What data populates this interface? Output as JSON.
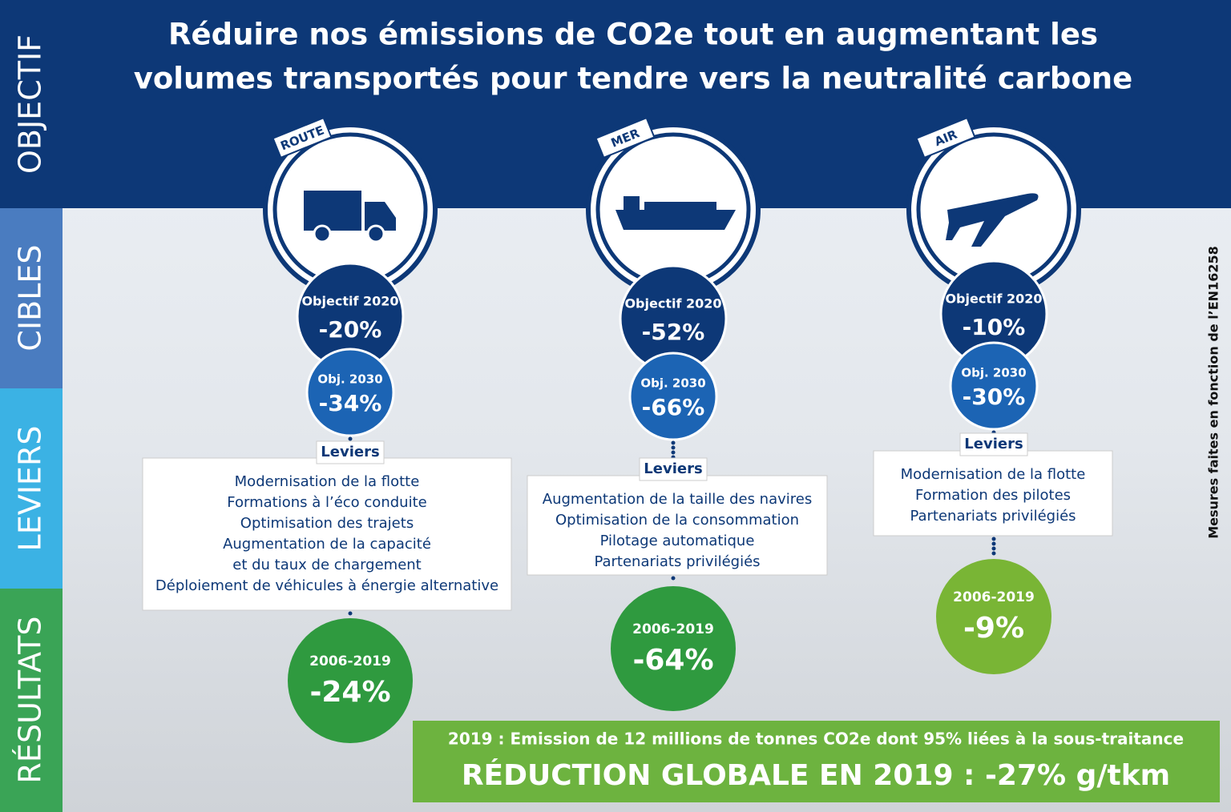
{
  "sidebar": [
    "OBJECTIF",
    "CIBLES",
    "LEVIERS",
    "RÉSULTATS"
  ],
  "title": [
    "Réduire nos émissions de CO2e tout en augmentant les",
    "volumes transportés pour tendre vers la neutralité carbone"
  ],
  "modes": [
    {
      "label": "ROUTE",
      "obj2020_label": "Objectif 2020",
      "obj2020_value": "-20%",
      "obj2030_label": "Obj. 2030",
      "obj2030_value": "-34%",
      "levers_title": "Leviers",
      "levers": [
        "Modernisation de la flotte",
        "Formations à l’éco conduite",
        "Optimisation des trajets",
        "Augmentation de la capacité",
        "et du taux de chargement",
        "Déploiement de véhicules à énergie alternative"
      ],
      "result_period": "2006-2019",
      "result_value": "-24%"
    },
    {
      "label": "MER",
      "obj2020_label": "Objectif 2020",
      "obj2020_value": "-52%",
      "obj2030_label": "Obj. 2030",
      "obj2030_value": "-66%",
      "levers_title": "Leviers",
      "levers": [
        "Augmentation de la taille des navires",
        "Optimisation de la consommation",
        "Pilotage automatique",
        "Partenariats privilégiés"
      ],
      "result_period": "2006-2019",
      "result_value": "-64%"
    },
    {
      "label": "AIR",
      "obj2020_label": "Objectif 2020",
      "obj2020_value": "-10%",
      "obj2030_label": "Obj. 2030",
      "obj2030_value": "-30%",
      "levers_title": "Leviers",
      "levers": [
        "Modernisation de la flotte",
        "Formation des pilotes",
        "Partenariats privilégiés"
      ],
      "result_period": "2006-2019",
      "result_value": "-9%"
    }
  ],
  "note": "Mesures faites en fonction de l’EN16258",
  "footer": {
    "line1": "2019 : Emission de 12 millions de tonnes CO2e dont 95% liées à la sous-traitance",
    "line2": "RÉDUCTION GLOBALE EN 2019 : -27% g/tkm"
  }
}
